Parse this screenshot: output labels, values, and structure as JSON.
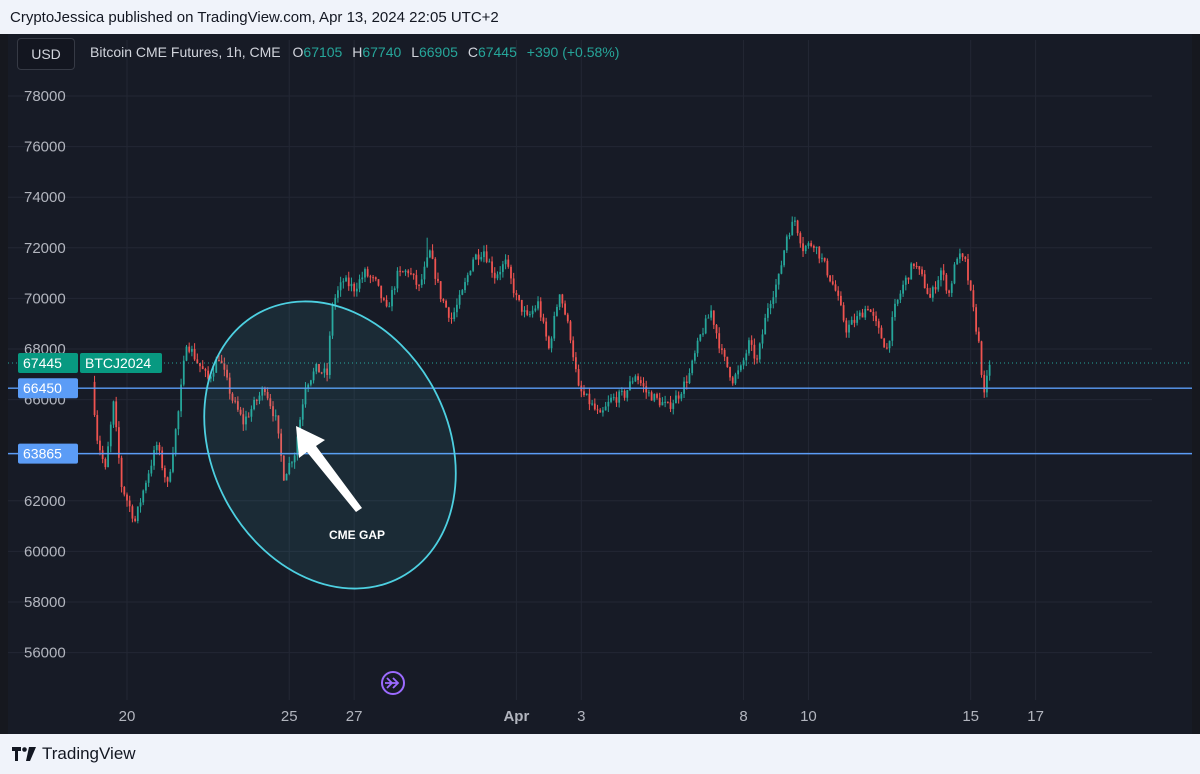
{
  "header": {
    "publisher_line": "CryptoJessica published on TradingView.com, Apr 13, 2024 22:05 UTC+2"
  },
  "footer": {
    "brand": "TradingView"
  },
  "currency_label": "USD",
  "legend": {
    "symbol": "Bitcoin CME Futures, 1h, CME",
    "open_key": "O",
    "open": "67105",
    "high_key": "H",
    "high": "67740",
    "low_key": "L",
    "low": "66905",
    "close_key": "C",
    "close": "67445",
    "change": "+390 (+0.58%)"
  },
  "colors": {
    "up": "#26a69a",
    "down": "#ef5350",
    "level_line": "#5b9cf6",
    "annotation": "#4dd0e1",
    "badge_green": "#089981",
    "badge_blue": "#5b9cf6"
  },
  "annotation": {
    "text": "CME GAP"
  },
  "price_badges": {
    "last": "67445",
    "symbol_tag": "BTCJ2024",
    "level1": "66450",
    "level2": "63865"
  },
  "chart_data": {
    "type": "candlestick",
    "title": "",
    "y_ticks": [
      "78000",
      "76000",
      "74000",
      "72000",
      "70000",
      "68000",
      "66000",
      "62000",
      "60000",
      "58000",
      "56000"
    ],
    "ylim": [
      54200,
      79200
    ],
    "x_ticks": [
      "20",
      "25",
      "27",
      "Apr",
      "3",
      "8",
      "10",
      "15",
      "17"
    ],
    "horizontal_levels": [
      66450,
      63865
    ],
    "last_price": 67445,
    "close_path": [
      [
        "Mar 18 22:00",
        66700
      ],
      [
        "Mar 19 02:00",
        64500
      ],
      [
        "Mar 19 08:00",
        63200
      ],
      [
        "Mar 19 14:00",
        65800
      ],
      [
        "Mar 19 20:00",
        62600
      ],
      [
        "Mar 20 06:00",
        61200
      ],
      [
        "Mar 20 14:00",
        62800
      ],
      [
        "Mar 20 22:00",
        64200
      ],
      [
        "Mar 21 06:00",
        62600
      ],
      [
        "Mar 21 14:00",
        65500
      ],
      [
        "Mar 21 20:00",
        68300
      ],
      [
        "Mar 22 04:00",
        67500
      ],
      [
        "Mar 22 12:00",
        66800
      ],
      [
        "Mar 22 20:00",
        67700
      ],
      [
        "Mar 23 06:00",
        66000
      ],
      [
        "Mar 23 14:00",
        65100
      ],
      [
        "Mar 23 22:00",
        65800
      ],
      [
        "Mar 24 06:00",
        66500
      ],
      [
        "Mar 24 14:00",
        65200
      ],
      [
        "Mar 24 20:00",
        63000
      ],
      [
        "Mar 25 04:00",
        63900
      ],
      [
        "Mar 25 12:00",
        66600
      ],
      [
        "Mar 25 20:00",
        67200
      ],
      [
        "Mar 26 04:00",
        67000
      ],
      [
        "Mar 26 08:00",
        69800
      ],
      [
        "Mar 26 16:00",
        70700
      ],
      [
        "Mar 27 00:00",
        70400
      ],
      [
        "Mar 27 08:00",
        71000
      ],
      [
        "Mar 27 16:00",
        70600
      ],
      [
        "Mar 28 00:00",
        69500
      ],
      [
        "Mar 28 08:00",
        70900
      ],
      [
        "Mar 28 16:00",
        71100
      ],
      [
        "Mar 29 00:00",
        70400
      ],
      [
        "Mar 29 08:00",
        71800
      ],
      [
        "Mar 29 16:00",
        70100
      ],
      [
        "Mar 30 00:00",
        69200
      ],
      [
        "Mar 30 08:00",
        70200
      ],
      [
        "Mar 30 16:00",
        71600
      ],
      [
        "Mar 31 00:00",
        71900
      ],
      [
        "Mar 31 08:00",
        70900
      ],
      [
        "Mar 31 16:00",
        71400
      ],
      [
        "Apr 1 00:00",
        70000
      ],
      [
        "Apr 1 08:00",
        69200
      ],
      [
        "Apr 1 16:00",
        69800
      ],
      [
        "Apr 2 00:00",
        68000
      ],
      [
        "Apr 2 08:00",
        70300
      ],
      [
        "Apr 2 16:00",
        68500
      ],
      [
        "Apr 2 22:00",
        66400
      ],
      [
        "Apr 3 06:00",
        65900
      ],
      [
        "Apr 3 14:00",
        65300
      ],
      [
        "Apr 3 22:00",
        66000
      ],
      [
        "Apr 4 08:00",
        66200
      ],
      [
        "Apr 4 16:00",
        67000
      ],
      [
        "Apr 5 00:00",
        66300
      ],
      [
        "Apr 5 08:00",
        66000
      ],
      [
        "Apr 5 16:00",
        65700
      ],
      [
        "Apr 6 00:00",
        66200
      ],
      [
        "Apr 6 08:00",
        67000
      ],
      [
        "Apr 6 16:00",
        68500
      ],
      [
        "Apr 7 00:00",
        69500
      ],
      [
        "Apr 7 08:00",
        67800
      ],
      [
        "Apr 7 16:00",
        66800
      ],
      [
        "Apr 7 22:00",
        67200
      ],
      [
        "Apr 8 04:00",
        68200
      ],
      [
        "Apr 8 10:00",
        67500
      ],
      [
        "Apr 8 18:00",
        69700
      ],
      [
        "Apr 9 02:00",
        70800
      ],
      [
        "Apr 9 08:00",
        72500
      ],
      [
        "Apr 9 14:00",
        73100
      ],
      [
        "Apr 9 20:00",
        72000
      ],
      [
        "Apr 10 04:00",
        72200
      ],
      [
        "Apr 10 12:00",
        71300
      ],
      [
        "Apr 10 20:00",
        70300
      ],
      [
        "Apr 11 04:00",
        68800
      ],
      [
        "Apr 11 12:00",
        69200
      ],
      [
        "Apr 11 20:00",
        69700
      ],
      [
        "Apr 12 04:00",
        68700
      ],
      [
        "Apr 12 10:00",
        68000
      ],
      [
        "Apr 12 16:00",
        69600
      ],
      [
        "Apr 12 22:00",
        70500
      ],
      [
        "Apr 13 06:00",
        71400
      ],
      [
        "Apr 13 12:00",
        70800
      ],
      [
        "Apr 13 18:00",
        70000
      ],
      [
        "Apr 14 02:00",
        71100
      ],
      [
        "Apr 14 08:00",
        70200
      ],
      [
        "Apr 14 14:00",
        71700
      ],
      [
        "Apr 14 20:00",
        71400
      ],
      [
        "Apr 15 02:00",
        69500
      ],
      [
        "Apr 15 06:00",
        68200
      ],
      [
        "Apr 15 10:00",
        66100
      ],
      [
        "Apr 15 14:00",
        67445
      ]
    ]
  }
}
